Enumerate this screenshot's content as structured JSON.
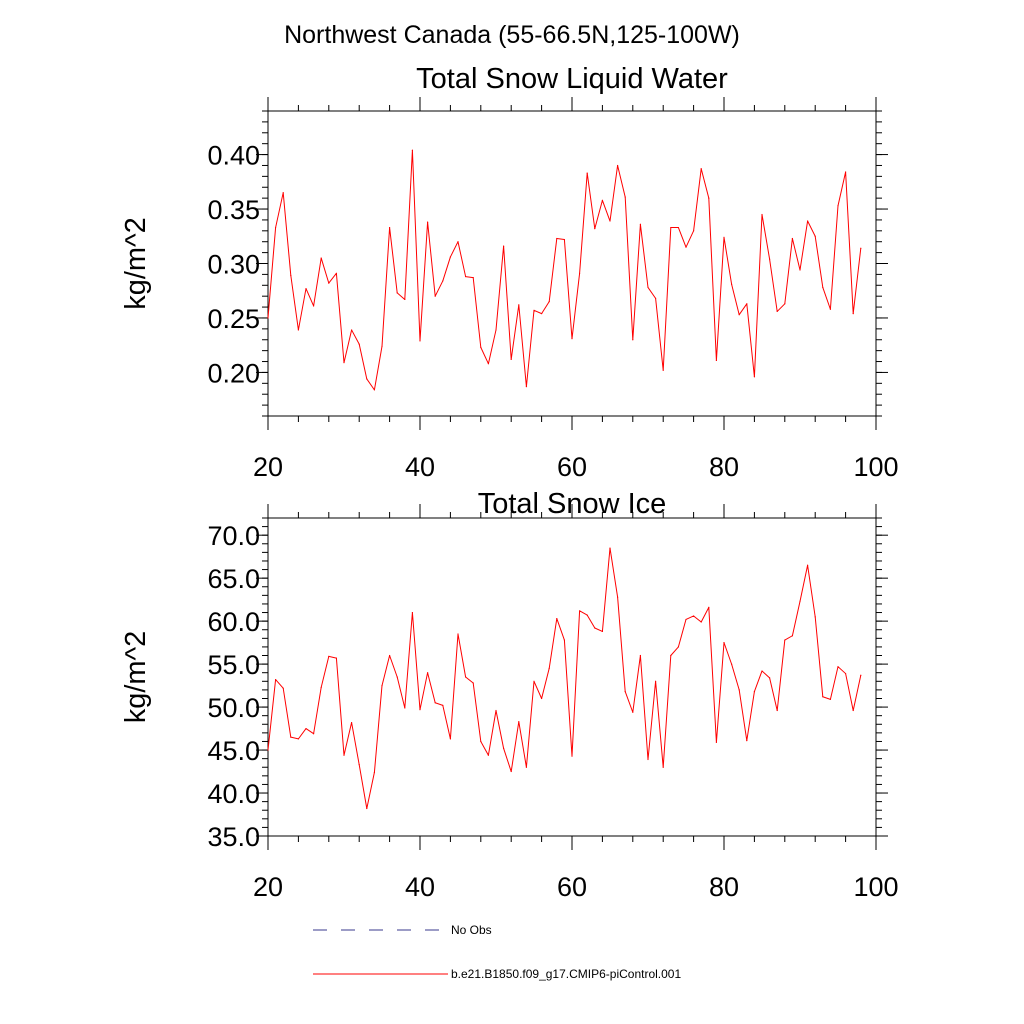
{
  "figure": {
    "title": "Northwest Canada (55-66.5N,125-100W)"
  },
  "chart_data": [
    {
      "type": "line",
      "title": "Total Snow Liquid Water",
      "xlabel": "",
      "ylabel": "kg/m^2",
      "xlim": [
        20,
        100
      ],
      "ylim": [
        0.16,
        0.44
      ],
      "x_ticks": [
        20,
        40,
        60,
        80,
        100
      ],
      "x_tick_labels": [
        "20",
        "40",
        "60",
        "80",
        "100"
      ],
      "y_ticks": [
        0.2,
        0.25,
        0.3,
        0.35,
        0.4
      ],
      "y_tick_labels": [
        "0.20",
        "0.25",
        "0.30",
        "0.35",
        "0.40"
      ],
      "y_minor_step": 0.01,
      "x_minor_step": 4,
      "grid": false,
      "series": [
        {
          "name": "b.e21.B1850.f09_g17.CMIP6-piControl.001",
          "color": "#ff0000",
          "x_start": 20,
          "x_step": 1,
          "values": [
            0.25,
            0.333,
            0.365,
            0.289,
            0.239,
            0.277,
            0.261,
            0.305,
            0.282,
            0.291,
            0.209,
            0.239,
            0.226,
            0.194,
            0.184,
            0.224,
            0.333,
            0.273,
            0.267,
            0.404,
            0.229,
            0.338,
            0.27,
            0.284,
            0.306,
            0.32,
            0.288,
            0.287,
            0.223,
            0.208,
            0.239,
            0.316,
            0.212,
            0.262,
            0.187,
            0.257,
            0.254,
            0.265,
            0.323,
            0.322,
            0.231,
            0.291,
            0.383,
            0.332,
            0.358,
            0.339,
            0.39,
            0.361,
            0.23,
            0.336,
            0.278,
            0.268,
            0.202,
            0.333,
            0.333,
            0.315,
            0.33,
            0.387,
            0.36,
            0.211,
            0.324,
            0.281,
            0.253,
            0.263,
            0.196,
            0.345,
            0.304,
            0.256,
            0.263,
            0.323,
            0.294,
            0.339,
            0.325,
            0.278,
            0.258,
            0.353,
            0.384,
            0.254,
            0.314
          ]
        }
      ]
    },
    {
      "type": "line",
      "title": "Total Snow Ice",
      "xlabel": "",
      "ylabel": "kg/m^2",
      "xlim": [
        20,
        100
      ],
      "ylim": [
        35.0,
        72.0
      ],
      "x_ticks": [
        20,
        40,
        60,
        80,
        100
      ],
      "x_tick_labels": [
        "20",
        "40",
        "60",
        "80",
        "100"
      ],
      "y_ticks": [
        35.0,
        40.0,
        45.0,
        50.0,
        55.0,
        60.0,
        65.0,
        70.0
      ],
      "y_tick_labels": [
        "35.0",
        "40.0",
        "45.0",
        "50.0",
        "55.0",
        "60.0",
        "65.0",
        "70.0"
      ],
      "y_minor_step": 1,
      "x_minor_step": 4,
      "grid": false,
      "series": [
        {
          "name": "b.e21.B1850.f09_g17.CMIP6-piControl.001",
          "color": "#ff0000",
          "x_start": 20,
          "x_step": 1,
          "values": [
            45.0,
            53.2,
            52.2,
            46.5,
            46.3,
            47.5,
            46.9,
            52.3,
            55.9,
            55.7,
            44.4,
            48.2,
            43.3,
            38.2,
            42.4,
            52.5,
            56.0,
            53.5,
            49.9,
            61.0,
            49.7,
            54.0,
            50.5,
            50.2,
            46.3,
            58.5,
            53.5,
            52.8,
            46.0,
            44.4,
            49.6,
            45.2,
            42.5,
            48.3,
            43.0,
            53.0,
            51.0,
            54.5,
            60.3,
            57.8,
            44.3,
            61.2,
            60.7,
            59.2,
            58.8,
            68.5,
            62.8,
            51.8,
            49.4,
            56.0,
            43.9,
            53.0,
            43.0,
            56.0,
            57.0,
            60.2,
            60.6,
            59.9,
            61.6,
            45.9,
            57.5,
            55.0,
            52.0,
            46.1,
            51.8,
            54.2,
            53.4,
            49.6,
            57.8,
            58.3,
            62.3,
            66.5,
            60.5,
            51.2,
            50.9,
            54.7,
            53.9,
            49.6,
            53.7
          ]
        }
      ]
    }
  ],
  "legend": {
    "position": "bottom",
    "items": [
      {
        "label": "No Obs",
        "style": "dashed",
        "color": "#3a3a8c"
      },
      {
        "label": "b.e21.B1850.f09_g17.CMIP6-piControl.001",
        "style": "solid",
        "color": "#ff0000"
      }
    ]
  }
}
